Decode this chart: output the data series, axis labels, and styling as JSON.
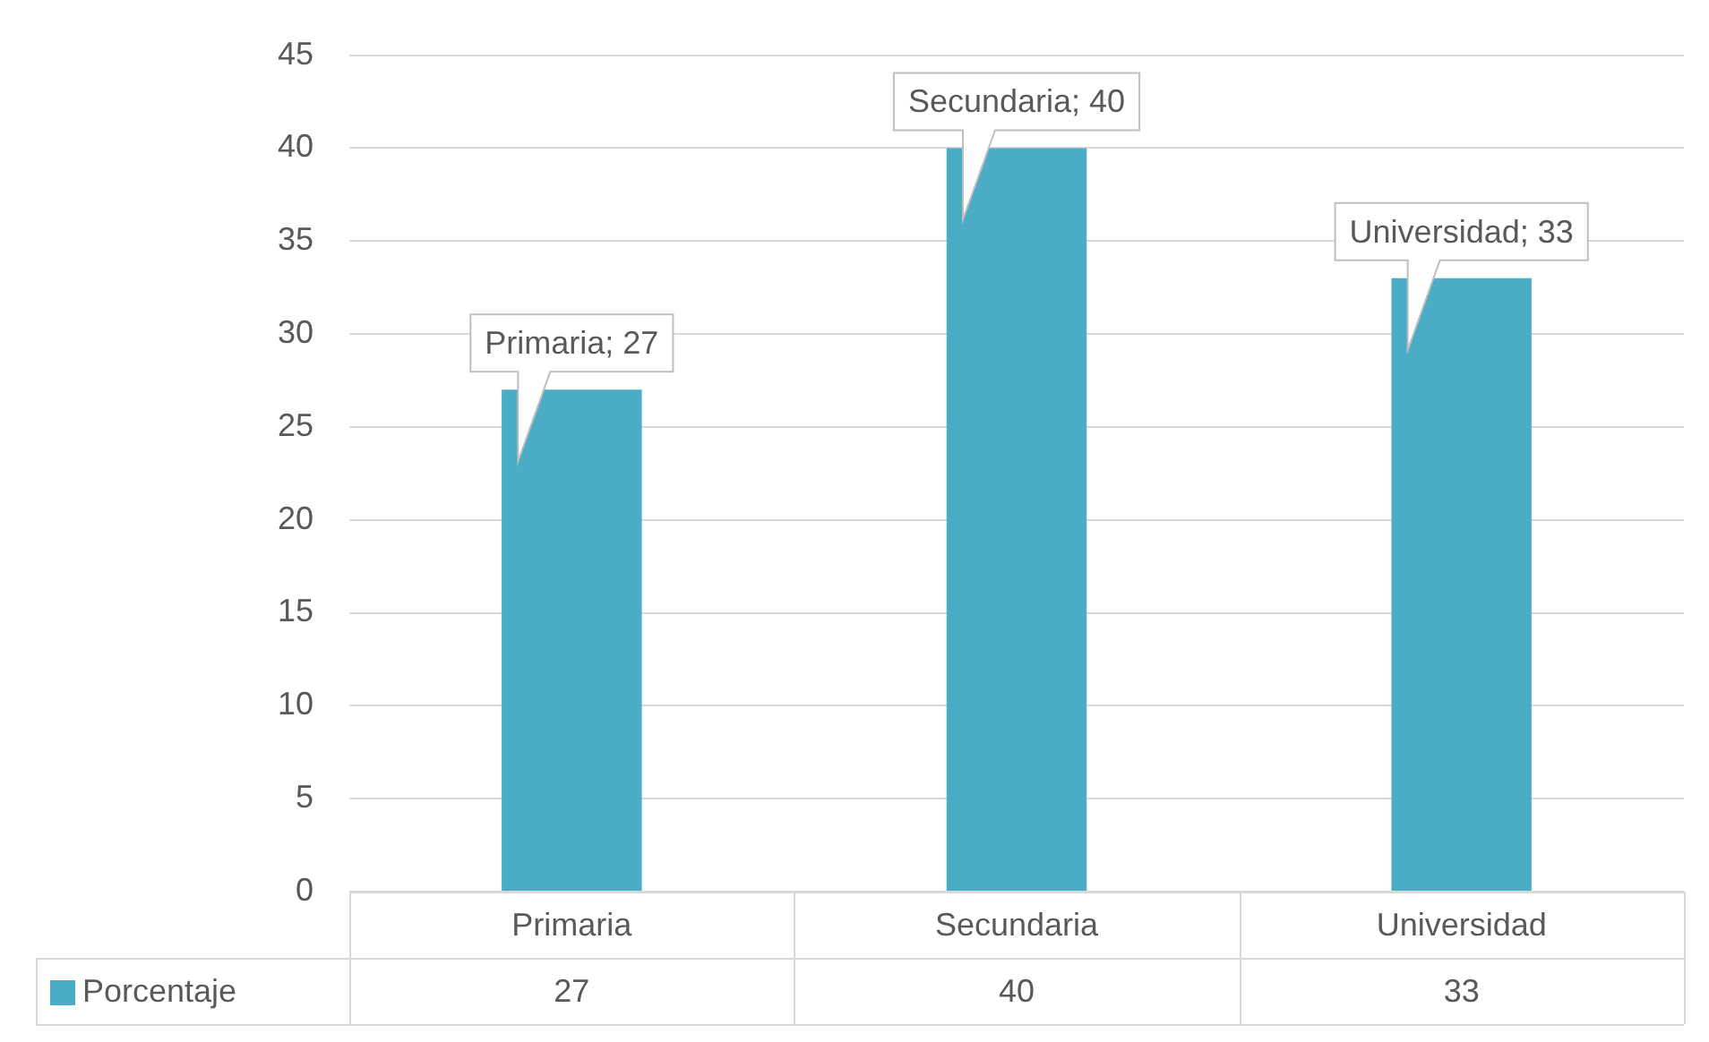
{
  "chart_data": {
    "type": "bar",
    "categories": [
      "Primaria",
      "Secundaria",
      "Universidad"
    ],
    "series": [
      {
        "name": "Porcentaje",
        "color": "#4bacc6",
        "values": [
          27,
          40,
          33
        ]
      }
    ],
    "annotations": [
      {
        "text": "Primaria; 27",
        "x": "Primaria",
        "y": 27
      },
      {
        "text": "Secundaria; 40",
        "x": "Secundaria",
        "y": 40
      },
      {
        "text": "Universidad; 33",
        "x": "Universidad",
        "y": 33
      }
    ],
    "ylim": [
      0,
      45
    ],
    "yticks": [
      0,
      5,
      10,
      15,
      20,
      25,
      30,
      35,
      40,
      45
    ],
    "grid": "y",
    "legend": "bottom",
    "data_labels": true
  }
}
